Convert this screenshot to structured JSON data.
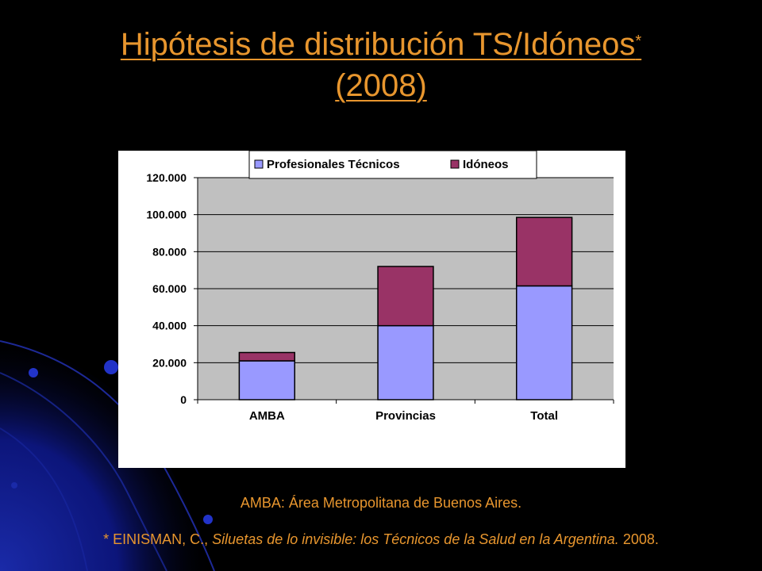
{
  "slide": {
    "title_line1": "Hipótesis de distribución TS/Idóneos",
    "title_asterisk": "*",
    "title_line2": "(2008)",
    "footnote_amba": "AMBA: Área Metropolitana de Buenos Aires.",
    "reference_prefix": "* EINISMAN, C., ",
    "reference_title": "Siluetas de lo invisible: los Técnicos de la Salud en la Argentina.",
    "reference_year": " 2008."
  },
  "colors": {
    "background": "#000000",
    "title_text": "#e8962e",
    "plot_area": "#c0c0c0",
    "series_profesionales": "#9999ff",
    "series_idoneos": "#993366"
  },
  "chart_data": {
    "type": "bar",
    "stacked": true,
    "categories": [
      "AMBA",
      "Provincias",
      "Total"
    ],
    "series": [
      {
        "name": "Profesionales Técnicos",
        "values": [
          21000,
          40000,
          61500
        ],
        "color": "#9999ff"
      },
      {
        "name": "Idóneos",
        "values": [
          4500,
          32000,
          37000
        ],
        "color": "#993366"
      }
    ],
    "ylim": [
      0,
      120000
    ],
    "yticks": [
      0,
      20000,
      40000,
      60000,
      80000,
      100000,
      120000
    ],
    "ytick_labels": [
      "0",
      "20.000",
      "40.000",
      "60.000",
      "80.000",
      "100.000",
      "120.000"
    ],
    "grid": true,
    "legend_position": "top",
    "title": "",
    "xlabel": "",
    "ylabel": ""
  }
}
